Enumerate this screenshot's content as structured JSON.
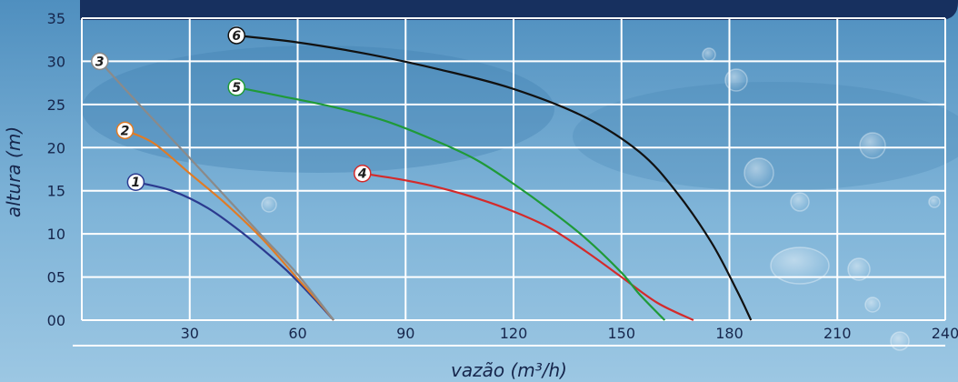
{
  "colors": {
    "background": "#7fb3d6",
    "banner": "#17305f",
    "grid": "#ffffff",
    "text": "#16264c"
  },
  "chart_data": {
    "type": "line",
    "xlabel": "vazão (m³/h)",
    "ylabel": "altura (m)",
    "xlim": [
      0,
      240
    ],
    "ylim": [
      0,
      35
    ],
    "x_ticks": [
      "30",
      "60",
      "90",
      "120",
      "150",
      "180",
      "210",
      "240"
    ],
    "y_ticks": [
      "00",
      "05",
      "10",
      "15",
      "20",
      "25",
      "30",
      "35"
    ],
    "grid": true,
    "series": [
      {
        "name": "1",
        "color": "#2b3a8f",
        "x": [
          15,
          25,
          35,
          45,
          55,
          60,
          65,
          70
        ],
        "y": [
          16,
          15,
          13,
          10,
          6.5,
          4.5,
          2.3,
          0
        ]
      },
      {
        "name": "2",
        "color": "#e07b25",
        "x": [
          12,
          20,
          30,
          40,
          50,
          60,
          65,
          70
        ],
        "y": [
          22,
          20.5,
          17,
          13.5,
          9.5,
          4.8,
          2.5,
          0
        ]
      },
      {
        "name": "3",
        "color": "#8a8a8a",
        "x": [
          5,
          10,
          20,
          30,
          40,
          50,
          60,
          70
        ],
        "y": [
          30,
          27.7,
          23.2,
          18.8,
          14.3,
          9.8,
          5.3,
          0
        ]
      },
      {
        "name": "4",
        "color": "#d42a2a",
        "x": [
          78,
          90,
          100,
          110,
          120,
          130,
          140,
          150,
          160,
          170
        ],
        "y": [
          17,
          16.2,
          15.3,
          14.1,
          12.6,
          10.7,
          8,
          5,
          2,
          0
        ]
      },
      {
        "name": "5",
        "color": "#1f9a38",
        "x": [
          43,
          55,
          70,
          85,
          100,
          110,
          120,
          130,
          140,
          150,
          155,
          162
        ],
        "y": [
          27,
          26,
          24.7,
          23,
          20.5,
          18.5,
          15.8,
          12.8,
          9.5,
          5.5,
          3,
          0
        ]
      },
      {
        "name": "6",
        "color": "#111111",
        "x": [
          43,
          60,
          80,
          100,
          120,
          140,
          155,
          165,
          175,
          182,
          186
        ],
        "y": [
          33,
          32.2,
          30.8,
          29,
          26.8,
          23.5,
          19.5,
          15,
          9,
          3.5,
          0
        ]
      }
    ]
  }
}
